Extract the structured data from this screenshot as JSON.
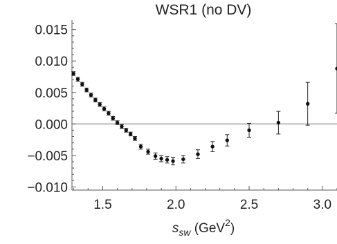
{
  "chart_data": {
    "type": "scatter",
    "title": "WSR1 (no DV)",
    "xlabel": {
      "main": "s",
      "sub": "sw",
      "rest": " (GeV",
      "sup": "2",
      "close": ")"
    },
    "ylabel": "",
    "xlim": [
      1.29,
      3.1
    ],
    "ylim": [
      -0.0105,
      0.0165
    ],
    "xticks": [
      {
        "value": 1.5,
        "label": "1.5"
      },
      {
        "value": 2.0,
        "label": "2.0"
      },
      {
        "value": 2.5,
        "label": "2.5"
      },
      {
        "value": 3.0,
        "label": "3.0"
      }
    ],
    "yticks": [
      {
        "value": -0.01,
        "label": "−0.010"
      },
      {
        "value": -0.005,
        "label": "−0.005"
      },
      {
        "value": 0.0,
        "label": "0.000"
      },
      {
        "value": 0.005,
        "label": "0.005"
      },
      {
        "value": 0.01,
        "label": "0.010"
      },
      {
        "value": 0.015,
        "label": "0.015"
      }
    ],
    "zero_line": true,
    "series": [
      {
        "points": [
          {
            "x": 1.3,
            "y": 0.008,
            "err": 0.0003
          },
          {
            "x": 1.33,
            "y": 0.0071,
            "err": 0.0003
          },
          {
            "x": 1.36,
            "y": 0.0063,
            "err": 0.0003
          },
          {
            "x": 1.39,
            "y": 0.0054,
            "err": 0.0003
          },
          {
            "x": 1.42,
            "y": 0.0046,
            "err": 0.0003
          },
          {
            "x": 1.45,
            "y": 0.0038,
            "err": 0.0003
          },
          {
            "x": 1.48,
            "y": 0.0031,
            "err": 0.0003
          },
          {
            "x": 1.51,
            "y": 0.0024,
            "err": 0.0003
          },
          {
            "x": 1.54,
            "y": 0.0017,
            "err": 0.0003
          },
          {
            "x": 1.57,
            "y": 0.0009,
            "err": 0.0003
          },
          {
            "x": 1.6,
            "y": 0.0002,
            "err": 0.0003
          },
          {
            "x": 1.63,
            "y": -0.0004,
            "err": 0.0003
          },
          {
            "x": 1.66,
            "y": -0.001,
            "err": 0.0003
          },
          {
            "x": 1.69,
            "y": -0.0016,
            "err": 0.0003
          },
          {
            "x": 1.72,
            "y": -0.0023,
            "err": 0.0003
          },
          {
            "x": 1.76,
            "y": -0.0036,
            "err": 0.0004
          },
          {
            "x": 1.81,
            "y": -0.0044,
            "err": 0.0004
          },
          {
            "x": 1.86,
            "y": -0.0051,
            "err": 0.0005
          },
          {
            "x": 1.9,
            "y": -0.0055,
            "err": 0.0005
          },
          {
            "x": 1.94,
            "y": -0.0057,
            "err": 0.0005
          },
          {
            "x": 1.98,
            "y": -0.0059,
            "err": 0.0006
          },
          {
            "x": 2.05,
            "y": -0.0056,
            "err": 0.0006
          },
          {
            "x": 2.15,
            "y": -0.0048,
            "err": 0.0007
          },
          {
            "x": 2.25,
            "y": -0.0036,
            "err": 0.0008
          },
          {
            "x": 2.35,
            "y": -0.0026,
            "err": 0.0009
          },
          {
            "x": 2.5,
            "y": -0.001,
            "err": 0.0011
          },
          {
            "x": 2.7,
            "y": 0.0002,
            "err": 0.0018
          },
          {
            "x": 2.9,
            "y": 0.0032,
            "err": 0.0034
          },
          {
            "x": 3.1,
            "y": 0.0088,
            "err": 0.0071
          }
        ]
      }
    ]
  }
}
